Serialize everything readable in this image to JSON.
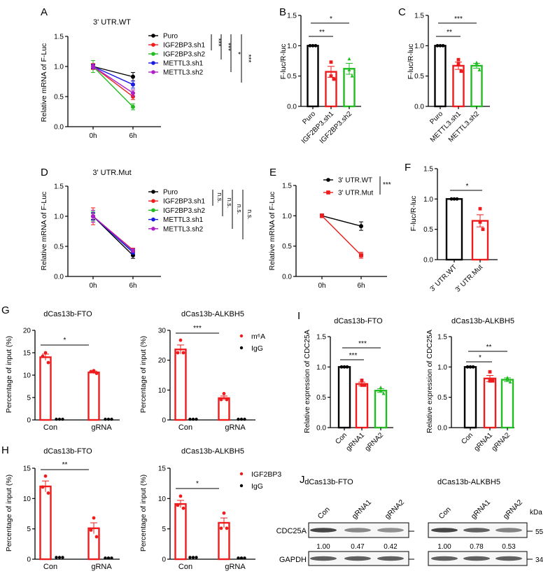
{
  "chart_data": [
    {
      "id": "A",
      "label": "A",
      "type": "line",
      "title": "3' UTR.WT",
      "ylabel": "Relative mRNA of F-Luc",
      "x": [
        "0h",
        "6h"
      ],
      "ylim": [
        0,
        1.5
      ],
      "yticks": [
        "0.0",
        "0.5",
        "1.0",
        "1.5"
      ],
      "series": [
        {
          "name": "Puro",
          "color": "#000000",
          "values": [
            1.0,
            0.83
          ],
          "err": [
            0.03,
            0.07
          ]
        },
        {
          "name": "IGF2BP3.sh1",
          "color": "#ee1c1c",
          "values": [
            1.0,
            0.5
          ],
          "err": [
            0.05,
            0.05
          ]
        },
        {
          "name": "IGF2BP3.sh2",
          "color": "#22bb22",
          "values": [
            1.0,
            0.33
          ],
          "err": [
            0.1,
            0.05
          ]
        },
        {
          "name": "METTL3.sh1",
          "color": "#1a1ae6",
          "values": [
            1.0,
            0.7
          ],
          "err": [
            0.04,
            0.06
          ]
        },
        {
          "name": "METTL3.sh2",
          "color": "#b01ec8",
          "values": [
            1.0,
            0.56
          ],
          "err": [
            0.04,
            0.05
          ]
        }
      ],
      "significance": [
        "***",
        "***",
        "*",
        "***"
      ]
    },
    {
      "id": "B",
      "label": "B",
      "type": "bar",
      "ylabel": "F-luc/R-luc",
      "ylim": [
        0,
        1.5
      ],
      "yticks": [
        "0.0",
        "0.5",
        "1.0",
        "1.5"
      ],
      "categories": [
        "Puro",
        "IGF2BP3.sh1",
        "IGF2BP3.sh2"
      ],
      "bars": [
        {
          "color": "#000000",
          "marker": "circle",
          "mean": 1.0,
          "sem": 0,
          "points": [
            1,
            1,
            1
          ]
        },
        {
          "color": "#ee1c1c",
          "marker": "square",
          "mean": 0.57,
          "sem": 0.09,
          "points": [
            0.73,
            0.5,
            0.45
          ]
        },
        {
          "color": "#22bb22",
          "marker": "triangle",
          "mean": 0.62,
          "sem": 0.09,
          "points": [
            0.78,
            0.6,
            0.5
          ]
        }
      ],
      "comparisons": [
        {
          "from": 0,
          "to": 1,
          "label": "**"
        },
        {
          "from": 0,
          "to": 2,
          "label": "*"
        }
      ]
    },
    {
      "id": "C",
      "label": "C",
      "type": "bar",
      "ylabel": "F-luc/R-luc",
      "ylim": [
        0,
        1.5
      ],
      "yticks": [
        "0.0",
        "0.5",
        "1.0",
        "1.5"
      ],
      "categories": [
        "Puro",
        "METTL3.sh1",
        "METTL3.sh2"
      ],
      "bars": [
        {
          "color": "#000000",
          "marker": "circle",
          "mean": 1.0,
          "sem": 0,
          "points": [
            1,
            1,
            1
          ]
        },
        {
          "color": "#ee1c1c",
          "marker": "square",
          "mean": 0.67,
          "sem": 0.06,
          "points": [
            0.77,
            0.7,
            0.58
          ]
        },
        {
          "color": "#22bb22",
          "marker": "triangle",
          "mean": 0.67,
          "sem": 0.04,
          "points": [
            0.72,
            0.71,
            0.6
          ]
        }
      ],
      "comparisons": [
        {
          "from": 0,
          "to": 1,
          "label": "**"
        },
        {
          "from": 0,
          "to": 2,
          "label": "***"
        }
      ]
    },
    {
      "id": "D",
      "label": "D",
      "type": "line",
      "title": "3' UTR.Mut",
      "ylabel": "Relative mRNA of F-Luc",
      "x": [
        "0h",
        "6h"
      ],
      "ylim": [
        0,
        1.5
      ],
      "yticks": [
        "0.0",
        "0.5",
        "1.0",
        "1.5"
      ],
      "series": [
        {
          "name": "Puro",
          "color": "#000000",
          "values": [
            1.0,
            0.35
          ],
          "err": [
            0.05,
            0.05
          ]
        },
        {
          "name": "IGF2BP3.sh1",
          "color": "#ee1c1c",
          "values": [
            1.0,
            0.44
          ],
          "err": [
            0.14,
            0.03
          ]
        },
        {
          "name": "IGF2BP3.sh2",
          "color": "#22bb22",
          "values": [
            1.0,
            0.42
          ],
          "err": [
            0.08,
            0.03
          ]
        },
        {
          "name": "METTL3.sh1",
          "color": "#1a1ae6",
          "values": [
            1.0,
            0.4
          ],
          "err": [
            0.06,
            0.03
          ]
        },
        {
          "name": "METTL3.sh2",
          "color": "#b01ec8",
          "values": [
            1.0,
            0.43
          ],
          "err": [
            0.1,
            0.03
          ]
        }
      ],
      "significance": [
        "n.s.",
        "n.s.",
        "n.s.",
        "n.s."
      ]
    },
    {
      "id": "E",
      "label": "E",
      "type": "line",
      "ylabel": "Relative mRNA of F-Luc",
      "x": [
        "0h",
        "6h"
      ],
      "ylim": [
        0,
        1.5
      ],
      "yticks": [
        "0.0",
        "0.5",
        "1.0",
        "1.5"
      ],
      "series": [
        {
          "name": "3' UTR.WT",
          "color": "#000000",
          "marker": "circle",
          "values": [
            1.0,
            0.83
          ],
          "err": [
            0.03,
            0.07
          ]
        },
        {
          "name": "3' UTR.Mut",
          "color": "#ee1c1c",
          "marker": "square",
          "values": [
            1.0,
            0.35
          ],
          "err": [
            0.03,
            0.05
          ]
        }
      ],
      "significance": [
        "***"
      ]
    },
    {
      "id": "F",
      "label": "F",
      "type": "bar",
      "ylabel": "F-luc/R-luc",
      "ylim": [
        0,
        1.5
      ],
      "yticks": [
        "0.0",
        "0.5",
        "1.0",
        "1.5"
      ],
      "categories": [
        "3' UTR.WT",
        "3' UTR.Mut"
      ],
      "bars": [
        {
          "color": "#000000",
          "marker": "circle",
          "mean": 1.0,
          "sem": 0,
          "points": [
            1,
            1,
            1
          ]
        },
        {
          "color": "#ee1c1c",
          "marker": "square",
          "mean": 0.64,
          "sem": 0.1,
          "points": [
            0.84,
            0.62,
            0.5
          ]
        }
      ],
      "comparisons": [
        {
          "from": 0,
          "to": 1,
          "label": "*"
        }
      ]
    },
    {
      "id": "G1",
      "label": "G",
      "type": "grouped-bar",
      "title": "dCas13b-FTO",
      "ylabel": "Percentage of input (%)",
      "ylim": [
        0,
        20
      ],
      "yticks": [
        "0",
        "5",
        "10",
        "15",
        "20"
      ],
      "categories": [
        "Con",
        "gRNA"
      ],
      "series_names": [
        "m⁶A",
        "IgG"
      ],
      "groups": [
        {
          "mean": 14.0,
          "sem": 0.7,
          "points": [
            15.0,
            14.2,
            12.8
          ],
          "igg": [
            0.1,
            0.1,
            0.1
          ]
        },
        {
          "mean": 10.6,
          "sem": 0.3,
          "points": [
            11.0,
            10.8,
            10.4
          ],
          "igg": [
            0.1,
            0.1,
            0.1
          ]
        }
      ],
      "comparisons": [
        {
          "from": 0,
          "to": 1,
          "label": "*"
        }
      ]
    },
    {
      "id": "G2",
      "label": "",
      "type": "grouped-bar",
      "title": "dCas13b-ALKBH5",
      "ylabel": "Percentage of input (%)",
      "ylim": [
        0,
        30
      ],
      "yticks": [
        "0",
        "10",
        "20",
        "30"
      ],
      "categories": [
        "Con",
        "gRNA"
      ],
      "series_names": [
        "m⁶A",
        "IgG"
      ],
      "groups": [
        {
          "mean": 23.6,
          "sem": 1.5,
          "points": [
            26.7,
            22.5,
            22.5
          ],
          "igg": [
            0.1,
            0.1,
            0.1
          ]
        },
        {
          "mean": 7.3,
          "sem": 0.7,
          "points": [
            8.8,
            6.8,
            6.8
          ],
          "igg": [
            0.1,
            0.1,
            0.1
          ]
        }
      ],
      "comparisons": [
        {
          "from": 0,
          "to": 1,
          "label": "***"
        }
      ]
    },
    {
      "id": "H1",
      "label": "H",
      "type": "grouped-bar",
      "title": "dCas13b-FTO",
      "ylabel": "Percentage of input (%)",
      "ylim": [
        0,
        15
      ],
      "yticks": [
        "0",
        "5",
        "10",
        "15"
      ],
      "categories": [
        "Con",
        "gRNA"
      ],
      "series_names": [
        "IGF2BP3",
        "IgG"
      ],
      "groups": [
        {
          "mean": 12.0,
          "sem": 0.9,
          "points": [
            13.7,
            11.9,
            10.9
          ],
          "igg": [
            0.3,
            0.3,
            0.3
          ]
        },
        {
          "mean": 5.1,
          "sem": 0.9,
          "points": [
            6.8,
            4.8,
            3.7
          ],
          "igg": [
            0.2,
            0.2,
            0.2
          ]
        }
      ],
      "comparisons": [
        {
          "from": 0,
          "to": 1,
          "label": "**"
        }
      ]
    },
    {
      "id": "H2",
      "label": "",
      "type": "grouped-bar",
      "title": "dCas13b-ALKBH5",
      "ylabel": "Percentage of input (%)",
      "ylim": [
        0,
        15
      ],
      "yticks": [
        "0",
        "5",
        "10",
        "15"
      ],
      "categories": [
        "Con",
        "gRNA"
      ],
      "series_names": [
        "IGF2BP3",
        "IgG"
      ],
      "groups": [
        {
          "mean": 9.1,
          "sem": 0.6,
          "points": [
            10.4,
            8.9,
            8.4
          ],
          "igg": [
            0.3,
            0.3,
            0.3
          ]
        },
        {
          "mean": 6.0,
          "sem": 0.8,
          "points": [
            7.6,
            5.1,
            5.1
          ],
          "igg": [
            0.2,
            0.2,
            0.2
          ]
        }
      ],
      "comparisons": [
        {
          "from": 0,
          "to": 1,
          "label": "*"
        }
      ]
    },
    {
      "id": "I1",
      "label": "I",
      "type": "bar",
      "title": "dCas13b-FTO",
      "ylabel": "Relative expression of CDC25A",
      "ylim": [
        0,
        1.5
      ],
      "yticks": [
        "0.0",
        "0.5",
        "1.0",
        "1.5"
      ],
      "categories": [
        "Con",
        "gRNA1",
        "gRNA2"
      ],
      "bars": [
        {
          "color": "#000000",
          "marker": "circle",
          "mean": 1.0,
          "sem": 0,
          "points": [
            1,
            1,
            1
          ]
        },
        {
          "color": "#ee1c1c",
          "marker": "square",
          "mean": 0.72,
          "sem": 0.03,
          "points": [
            0.78,
            0.7,
            0.7
          ]
        },
        {
          "color": "#22bb22",
          "marker": "triangle",
          "mean": 0.61,
          "sem": 0.03,
          "points": [
            0.66,
            0.61,
            0.56
          ]
        }
      ],
      "comparisons": [
        {
          "from": 0,
          "to": 1,
          "label": "***"
        },
        {
          "from": 0,
          "to": 2,
          "label": "***"
        }
      ]
    },
    {
      "id": "I2",
      "label": "",
      "type": "bar",
      "title": "dCas13b-ALKBH5",
      "ylabel": "Relative expression of CDC25A",
      "ylim": [
        0,
        1.5
      ],
      "yticks": [
        "0.0",
        "0.5",
        "1.0",
        "1.5"
      ],
      "categories": [
        "Con",
        "gRNA1",
        "gRNA2"
      ],
      "bars": [
        {
          "color": "#000000",
          "marker": "circle",
          "mean": 1.0,
          "sem": 0,
          "points": [
            1,
            1,
            1
          ]
        },
        {
          "color": "#ee1c1c",
          "marker": "square",
          "mean": 0.81,
          "sem": 0.05,
          "points": [
            0.92,
            0.77,
            0.77
          ]
        },
        {
          "color": "#22bb22",
          "marker": "triangle",
          "mean": 0.79,
          "sem": 0.03,
          "points": [
            0.82,
            0.79,
            0.75
          ]
        }
      ],
      "comparisons": [
        {
          "from": 0,
          "to": 1,
          "label": "*"
        },
        {
          "from": 0,
          "to": 2,
          "label": "**"
        }
      ]
    }
  ],
  "western_blot": {
    "label": "J",
    "rows": [
      "CDC25A",
      "GAPDH"
    ],
    "kda_label": "kDa",
    "markers": [
      "55",
      "34"
    ],
    "groups": [
      {
        "title": "dCas13b-FTO",
        "lanes": [
          "Con",
          "gRNA1",
          "gRNA2"
        ],
        "cdc25a_quant": [
          "1.00",
          "0.47",
          "0.42"
        ]
      },
      {
        "title": "dCas13b-ALKBH5",
        "lanes": [
          "Con",
          "gRNA1",
          "gRNA2"
        ],
        "cdc25a_quant": [
          "1.00",
          "0.78",
          "0.53"
        ]
      }
    ]
  }
}
